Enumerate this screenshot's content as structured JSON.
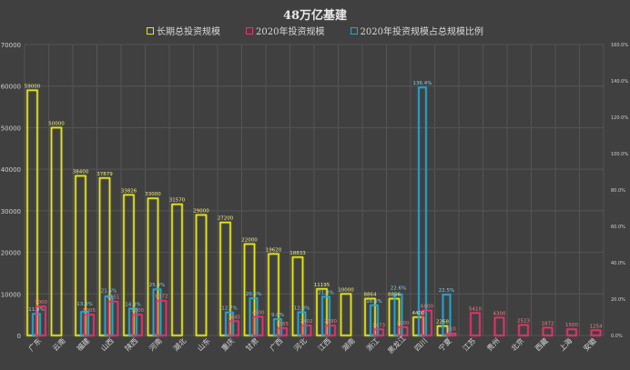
{
  "chart_data": {
    "type": "bar",
    "title": "48万亿基建",
    "legend_position": "top",
    "grid": true,
    "categories": [
      "广东",
      "云南",
      "福建",
      "山西",
      "陕西",
      "河南",
      "湖北",
      "山东",
      "重庆",
      "甘肃",
      "广西",
      "河北",
      "江西",
      "湖南",
      "浙江",
      "黑龙江",
      "四川",
      "宁夏",
      "江苏",
      "贵州",
      "北京",
      "西藏",
      "上海",
      "安徽"
    ],
    "series": [
      {
        "name": "长期总投资规模",
        "axis": "left",
        "color": "#e6e619",
        "values": [
          59000,
          50000,
          38400,
          37879,
          33826,
          33000,
          31570,
          29000,
          27200,
          22000,
          19620,
          18833,
          11195,
          10000,
          8864,
          8856,
          4400,
          2268,
          null,
          null,
          null,
          null,
          null,
          null
        ],
        "labels": [
          "59000",
          "50000",
          "38400",
          "37879",
          "33826",
          "33000",
          "31570",
          "29000",
          "27200",
          "22000",
          "19620",
          "18833",
          "11195",
          "10000",
          "8864",
          "8856",
          "4400",
          "2268",
          null,
          null,
          null,
          null,
          null,
          null
        ]
      },
      {
        "name": "2020年投资规模",
        "axis": "left",
        "color": "#e8336e",
        "values": [
          7000,
          null,
          5005,
          8151,
          5000,
          8372,
          null,
          null,
          3445,
          4500,
          1765,
          2402,
          2390,
          null,
          1473,
          2000,
          6000,
          510,
          5410,
          4300,
          2523,
          1872,
          1500,
          1254
        ],
        "labels": [
          "7000",
          null,
          "5005",
          "8151",
          "5000",
          "8372",
          null,
          null,
          "3445",
          "4500",
          "1765",
          "2402",
          "2390",
          null,
          "1473",
          "2000",
          "6000",
          "510",
          "5410",
          "4300",
          "2523",
          "1872",
          "1500",
          "1254"
        ]
      },
      {
        "name": "2020年投资规模占总规模比例",
        "axis": "right",
        "color": "#22a8d8",
        "values": [
          11.9,
          null,
          13.0,
          21.5,
          14.8,
          25.4,
          null,
          null,
          12.7,
          20.5,
          9.0,
          12.8,
          21.3,
          null,
          16.6,
          22.6,
          136.4,
          22.5,
          null,
          null,
          null,
          null,
          null,
          null
        ],
        "labels": [
          "11.9%",
          null,
          "13.0%",
          "21.5%",
          "14.8%",
          "25.4%",
          null,
          null,
          "12.7%",
          "20.5%",
          "9.0%",
          "12.8%",
          "21.3%",
          null,
          "16.6%",
          "22.6%",
          "136.4%",
          "22.5%",
          null,
          null,
          null,
          null,
          null,
          null
        ]
      }
    ],
    "left_axis": {
      "ylim": [
        0,
        70000
      ],
      "ticks": [
        "0",
        "10000",
        "20000",
        "30000",
        "40000",
        "50000",
        "60000",
        "70000"
      ]
    },
    "right_axis": {
      "ylim": [
        0,
        160
      ],
      "ticks": [
        "0.0%",
        "20.0%",
        "40.0%",
        "60.0%",
        "80.0%",
        "100.0%",
        "120.0%",
        "140.0%",
        "160.0%"
      ]
    },
    "label_colors": {
      "series0": "#f0f080",
      "series1": "#f08080",
      "series2": "#80d0f0"
    }
  },
  "background": "#404040"
}
